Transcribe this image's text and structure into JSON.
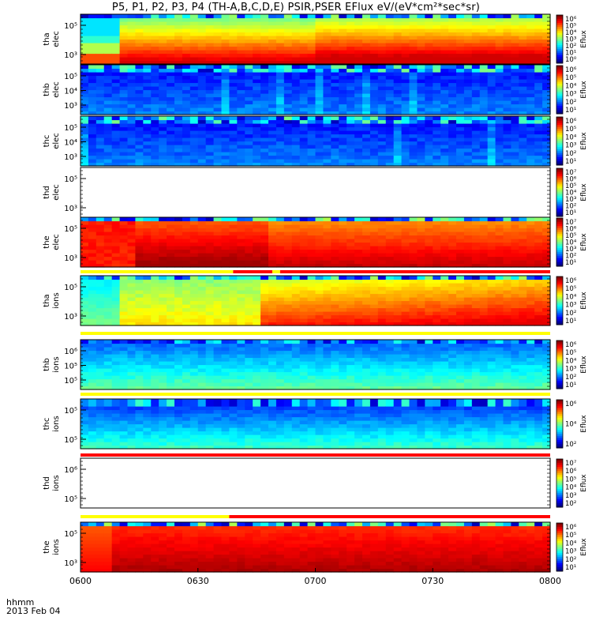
{
  "title": "P5, P1, P2, P3, P4 (TH-A,B,C,D,E) PSIR,PSER EFlux eV/(eV*cm²*sec*sr)",
  "footer": {
    "hhmm": "hhmm",
    "date": "2013 Feb 04"
  },
  "colorbar_label": "Eflux",
  "chart_data": {
    "type": "heatmap",
    "title": "P5, P1, P2, P3, P4 (TH-A,B,C,D,E) PSIR,PSER EFlux eV/(eV*cm²*sec*sr)",
    "xlabel": "hhmm",
    "x_ticks": [
      "0600",
      "0630",
      "0700",
      "0730",
      "0800"
    ],
    "x_range": [
      "06:00",
      "08:00"
    ],
    "date": "2013 Feb 04",
    "panels": [
      {
        "label": [
          "tha",
          "elec"
        ],
        "yticks": [
          "10⁵",
          "10³"
        ],
        "profile": "tha_elec",
        "colorbar_ticks": [
          "10⁶",
          "10⁵",
          "10⁴",
          "10³",
          "10²",
          "10¹",
          "10⁰"
        ],
        "colorbar_label": "Eflux"
      },
      {
        "label": [
          "thb",
          "elec"
        ],
        "yticks": [
          "10⁵",
          "10⁴",
          "10³"
        ],
        "profile": "low_blue",
        "colorbar_ticks": [
          "10⁶",
          "10⁵",
          "10⁴",
          "10³",
          "10²",
          "10¹"
        ],
        "colorbar_label": "Eflux"
      },
      {
        "label": [
          "thc",
          "elec"
        ],
        "yticks": [
          "10⁵",
          "10⁴",
          "10³"
        ],
        "profile": "low_blue",
        "colorbar_ticks": [
          "10⁶",
          "10⁵",
          "10⁴",
          "10³",
          "10²",
          "10¹"
        ],
        "colorbar_label": "Eflux"
      },
      {
        "label": [
          "thd",
          "elec"
        ],
        "yticks": [
          "10⁵",
          "10³"
        ],
        "profile": "empty",
        "colorbar_ticks": [
          "10⁷",
          "10⁶",
          "10⁵",
          "10⁴",
          "10³",
          "10²",
          "10¹"
        ],
        "colorbar_label": "Eflux"
      },
      {
        "label": [
          "the",
          "elec"
        ],
        "yticks": [
          "10⁵",
          "10³"
        ],
        "profile": "the_elec",
        "colorbar_ticks": [
          "10⁷",
          "10⁶",
          "10⁵",
          "10⁴",
          "10³",
          "10²",
          "10¹"
        ],
        "colorbar_label": "Eflux"
      },
      {
        "label": [
          "tha",
          "ions"
        ],
        "yticks": [
          "10⁵",
          "10³"
        ],
        "profile": "tha_ions",
        "colorbar_ticks": [
          "10⁶",
          "10⁵",
          "10⁴",
          "10³",
          "10²",
          "10¹"
        ],
        "colorbar_label": "Eflux"
      },
      {
        "label": [
          "thb",
          "ions"
        ],
        "yticks": [
          "10⁶",
          "10⁵",
          "10⁵"
        ],
        "profile": "thb_ions",
        "colorbar_ticks": [
          "10⁶",
          "10⁵",
          "10⁴",
          "10³",
          "10²",
          "10¹"
        ],
        "colorbar_label": "Eflux"
      },
      {
        "label": [
          "thc",
          "ions"
        ],
        "yticks": [
          "10⁵",
          "10⁵"
        ],
        "profile": "thc_ions",
        "colorbar_ticks": [
          "10⁶",
          "10⁴",
          "10²"
        ],
        "colorbar_label": "Eflux"
      },
      {
        "label": [
          "thd",
          "ions"
        ],
        "yticks": [
          "10⁶",
          "10⁵"
        ],
        "profile": "empty",
        "colorbar_ticks": [
          "10⁷",
          "10⁶",
          "10⁵",
          "10⁴",
          "10³",
          "10²"
        ],
        "colorbar_label": "Eflux"
      },
      {
        "label": [
          "the",
          "ions"
        ],
        "yticks": [
          "10⁵",
          "10³"
        ],
        "profile": "the_ions",
        "colorbar_ticks": [
          "10⁶",
          "10⁵",
          "10⁴",
          "10³",
          "10²",
          "10¹"
        ],
        "colorbar_label": "Eflux"
      }
    ],
    "mode_bars": [
      {
        "after_panel": 4,
        "segments": [
          {
            "from": "06:00",
            "to": "06:39",
            "color": "#ffff00"
          },
          {
            "from": "06:39",
            "to": "06:49",
            "color": "#ff0000"
          },
          {
            "from": "06:49",
            "to": "06:51",
            "color": "#ffff00"
          },
          {
            "from": "06:51",
            "to": "08:00",
            "color": "#ff0000"
          }
        ]
      },
      {
        "after_panel": 5,
        "segments": [
          {
            "from": "06:00",
            "to": "08:00",
            "color": "#ffff00"
          }
        ]
      },
      {
        "after_panel": 6,
        "segments": [
          {
            "from": "06:00",
            "to": "08:00",
            "color": "#ffff00"
          }
        ]
      },
      {
        "after_panel": 7,
        "segments": [
          {
            "from": "06:00",
            "to": "08:00",
            "color": "#ff0000"
          }
        ]
      },
      {
        "after_panel": 8,
        "segments": [
          {
            "from": "06:00",
            "to": "06:38",
            "color": "#ffff00"
          },
          {
            "from": "06:38",
            "to": "08:00",
            "color": "#ff0000"
          }
        ]
      }
    ]
  }
}
